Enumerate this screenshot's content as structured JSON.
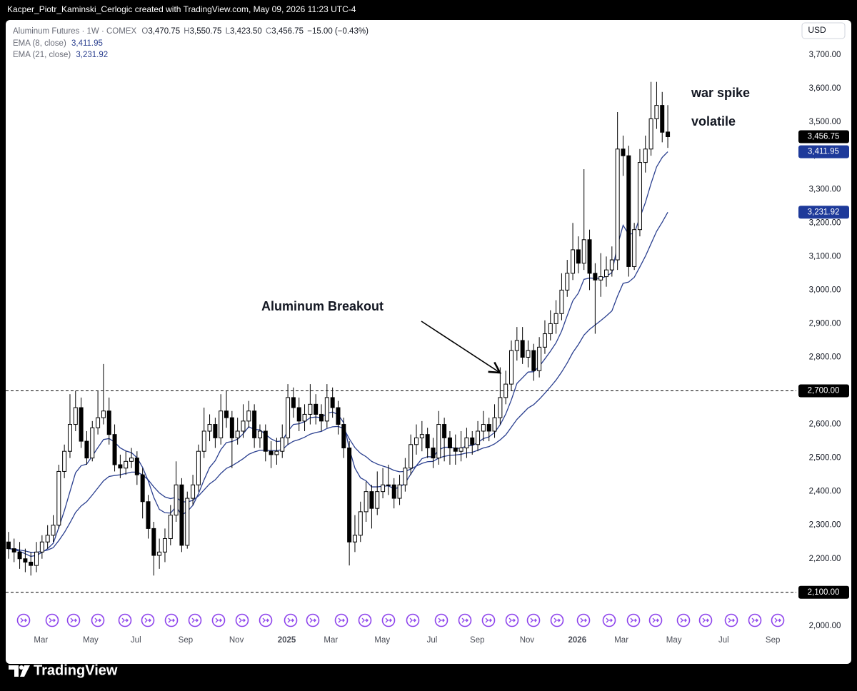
{
  "header": {
    "title": "Kacper_Piotr_Kaminski_Cerlogic created with TradingView.com, May 09, 2026 11:23 UTC-4"
  },
  "brand": "TradingView",
  "chart_data": {
    "type": "candlestick",
    "currency": "USD",
    "legend": {
      "symbol": "Aluminum Futures · 1W · COMEX",
      "open_label": "O",
      "open": "3,470.75",
      "high_label": "H",
      "high": "3,550.75",
      "low_label": "L",
      "low": "3,423.50",
      "close_label": "C",
      "close": "3,456.75",
      "change": "−15.00 (−0.43%)"
    },
    "annotations": [
      "Aluminum Breakout",
      "war spike",
      "volatile"
    ],
    "xlim": [
      -0.5,
      141
    ],
    "xticks": [
      {
        "value": 5.8,
        "label": "Mar"
      },
      {
        "value": 14.7,
        "label": "May"
      },
      {
        "value": 22.8,
        "label": "Jul"
      },
      {
        "value": 31.7,
        "label": "Sep"
      },
      {
        "value": 40.8,
        "label": "Nov"
      },
      {
        "value": 49.8,
        "label": "2025"
      },
      {
        "value": 57.7,
        "label": "Mar"
      },
      {
        "value": 66.9,
        "label": "May"
      },
      {
        "value": 75.8,
        "label": "Jul"
      },
      {
        "value": 83.9,
        "label": "Sep"
      },
      {
        "value": 92.8,
        "label": "Nov"
      },
      {
        "value": 101.8,
        "label": "2026"
      },
      {
        "value": 109.7,
        "label": "Mar"
      },
      {
        "value": 119.1,
        "label": "May"
      },
      {
        "value": 128,
        "label": "Jul"
      },
      {
        "value": 136.8,
        "label": "Sep"
      }
    ],
    "ylim": [
      1887,
      3800
    ],
    "yticks": [
      {
        "value": 2000,
        "label": "2,000.00"
      },
      {
        "value": 2200,
        "label": "2,200.00"
      },
      {
        "value": 2300,
        "label": "2,300.00"
      },
      {
        "value": 2400,
        "label": "2,400.00"
      },
      {
        "value": 2500,
        "label": "2,500.00"
      },
      {
        "value": 2600,
        "label": "2,600.00"
      },
      {
        "value": 2800,
        "label": "2,800.00"
      },
      {
        "value": 2900,
        "label": "2,900.00"
      },
      {
        "value": 3000,
        "label": "3,000.00"
      },
      {
        "value": 3100,
        "label": "3,100.00"
      },
      {
        "value": 3200,
        "label": "3,200.00"
      },
      {
        "value": 3300,
        "label": "3,300.00"
      },
      {
        "value": 3400,
        "label": "3,400.00"
      },
      {
        "value": 3500,
        "label": "3,500.00"
      },
      {
        "value": 3600,
        "label": "3,600.00"
      },
      {
        "value": 3700,
        "label": "3,700.00"
      }
    ],
    "grid": false,
    "hlines": [
      {
        "value": 2700,
        "label": "2,700.00"
      },
      {
        "value": 2100,
        "label": "2,100.00"
      }
    ],
    "open": [
      2250,
      2230,
      2220,
      2200,
      2190,
      2180,
      2220,
      2250,
      2270,
      2300,
      2460,
      2520,
      2600,
      2650,
      2550,
      2500,
      2590,
      2620,
      2640,
      2570,
      2480,
      2470,
      2490,
      2500,
      2450,
      2370,
      2290,
      2210,
      2220,
      2260,
      2330,
      2420,
      2240,
      2380,
      2420,
      2520,
      2580,
      2600,
      2560,
      2640,
      2620,
      2560,
      2580,
      2610,
      2640,
      2560,
      2580,
      2520,
      2510,
      2520,
      2560,
      2680,
      2650,
      2610,
      2630,
      2660,
      2630,
      2610,
      2680,
      2650,
      2600,
      2530,
      2250,
      2270,
      2340,
      2400,
      2350,
      2400,
      2420,
      2420,
      2380,
      2420,
      2470,
      2540,
      2560,
      2570,
      2530,
      2500,
      2600,
      2560,
      2530,
      2520,
      2530,
      2560,
      2540,
      2580,
      2600,
      2580,
      2620,
      2680,
      2720,
      2820,
      2850,
      2800,
      2820,
      2760,
      2830,
      2870,
      2900,
      2930,
      3000,
      3050,
      3120,
      3080,
      3150,
      3050,
      3030,
      3040,
      3060,
      3090,
      3420,
      3400,
      3070,
      3180,
      3380,
      3420,
      3510,
      3550,
      3470.75
    ],
    "high": [
      2280,
      2260,
      2250,
      2230,
      2220,
      2250,
      2270,
      2300,
      2330,
      2480,
      2540,
      2690,
      2700,
      2680,
      2580,
      2610,
      2700,
      2780,
      2680,
      2600,
      2510,
      2520,
      2530,
      2520,
      2470,
      2390,
      2310,
      2260,
      2290,
      2360,
      2490,
      2440,
      2400,
      2450,
      2540,
      2650,
      2630,
      2620,
      2690,
      2700,
      2640,
      2620,
      2660,
      2670,
      2660,
      2600,
      2600,
      2550,
      2560,
      2600,
      2720,
      2710,
      2680,
      2660,
      2720,
      2690,
      2660,
      2720,
      2710,
      2670,
      2620,
      2550,
      2330,
      2370,
      2430,
      2420,
      2460,
      2470,
      2480,
      2440,
      2450,
      2500,
      2570,
      2600,
      2610,
      2590,
      2560,
      2640,
      2620,
      2580,
      2570,
      2580,
      2590,
      2580,
      2610,
      2640,
      2620,
      2660,
      2770,
      2760,
      2850,
      2890,
      2890,
      2850,
      2840,
      2860,
      2910,
      2940,
      2970,
      3050,
      3090,
      3200,
      3160,
      3360,
      3180,
      3080,
      3110,
      3100,
      3130,
      3530,
      3460,
      3430,
      3200,
      3420,
      3460,
      3620,
      3620,
      3590,
      3550.75
    ],
    "low": [
      2200,
      2190,
      2170,
      2160,
      2150,
      2160,
      2200,
      2230,
      2250,
      2290,
      2440,
      2500,
      2580,
      2530,
      2480,
      2490,
      2570,
      2600,
      2540,
      2460,
      2440,
      2450,
      2470,
      2420,
      2320,
      2260,
      2150,
      2170,
      2190,
      2240,
      2310,
      2220,
      2230,
      2360,
      2400,
      2500,
      2550,
      2530,
      2540,
      2590,
      2470,
      2540,
      2560,
      2590,
      2530,
      2530,
      2490,
      2470,
      2480,
      2500,
      2540,
      2620,
      2580,
      2580,
      2600,
      2600,
      2580,
      2590,
      2620,
      2570,
      2500,
      2180,
      2220,
      2250,
      2310,
      2290,
      2330,
      2380,
      2390,
      2350,
      2360,
      2400,
      2450,
      2510,
      2520,
      2500,
      2470,
      2480,
      2490,
      2480,
      2480,
      2490,
      2500,
      2510,
      2520,
      2550,
      2550,
      2560,
      2600,
      2660,
      2700,
      2790,
      2780,
      2770,
      2730,
      2740,
      2810,
      2850,
      2870,
      2910,
      2980,
      3030,
      3050,
      3060,
      3000,
      2870,
      2980,
      3010,
      3040,
      3060,
      3340,
      3040,
      3060,
      3160,
      3350,
      3400,
      3480,
      3440,
      3423.5
    ],
    "close": [
      2230,
      2220,
      2200,
      2190,
      2180,
      2220,
      2250,
      2270,
      2300,
      2460,
      2520,
      2600,
      2650,
      2550,
      2500,
      2590,
      2620,
      2640,
      2570,
      2480,
      2470,
      2490,
      2500,
      2450,
      2370,
      2290,
      2210,
      2220,
      2260,
      2330,
      2420,
      2240,
      2380,
      2420,
      2520,
      2580,
      2600,
      2560,
      2640,
      2620,
      2560,
      2580,
      2610,
      2640,
      2560,
      2580,
      2520,
      2510,
      2520,
      2560,
      2680,
      2650,
      2610,
      2630,
      2660,
      2630,
      2610,
      2680,
      2650,
      2600,
      2530,
      2250,
      2270,
      2340,
      2400,
      2350,
      2400,
      2420,
      2420,
      2380,
      2420,
      2470,
      2540,
      2560,
      2570,
      2530,
      2500,
      2600,
      2560,
      2530,
      2520,
      2530,
      2560,
      2540,
      2580,
      2600,
      2580,
      2620,
      2680,
      2720,
      2820,
      2850,
      2800,
      2820,
      2760,
      2830,
      2870,
      2900,
      2930,
      3000,
      3050,
      3120,
      3080,
      3150,
      3050,
      3030,
      3040,
      3060,
      3090,
      3420,
      3400,
      3070,
      3180,
      3380,
      3420,
      3510,
      3550,
      3470,
      3456.75
    ],
    "series": [
      {
        "name": "EMA (8, close)",
        "color": "#2a3f8f",
        "last_label": "3,411.95",
        "values": [
          2230,
          2228,
          2222,
          2215,
          2207,
          2210,
          2219,
          2230,
          2246,
          2293,
          2343,
          2400,
          2456,
          2477,
          2482,
          2506,
          2531,
          2555,
          2558,
          2547,
          2530,
          2521,
          2516,
          2501,
          2472,
          2432,
          2383,
          2347,
          2337,
          2336,
          2355,
          2330,
          2341,
          2359,
          2394,
          2435,
          2472,
          2492,
          2525,
          2546,
          2549,
          2556,
          2572,
          2593,
          2585,
          2584,
          2570,
          2557,
          2549,
          2551,
          2580,
          2600,
          2602,
          2608,
          2620,
          2622,
          2620,
          2633,
          2637,
          2629,
          2605,
          2527,
          2470,
          2441,
          2432,
          2414,
          2414,
          2416,
          2417,
          2409,
          2412,
          2426,
          2452,
          2477,
          2498,
          2504,
          2503,
          2524,
          2532,
          2532,
          2529,
          2529,
          2536,
          2537,
          2546,
          2558,
          2563,
          2576,
          2599,
          2631,
          2673,
          2722,
          2739,
          2756,
          2757,
          2773,
          2795,
          2818,
          2843,
          2878,
          2924,
          2968,
          2991,
          3032,
          3036,
          3035,
          3035,
          3041,
          3052,
          3133,
          3193,
          3166,
          3169,
          3216,
          3261,
          3317,
          3367,
          3395,
          3411.95
        ]
      },
      {
        "name": "EMA (21, close)",
        "color": "#2a3f8f",
        "last_label": "3,231.92",
        "values": [
          2230,
          2229,
          2226,
          2223,
          2219,
          2219,
          2222,
          2226,
          2233,
          2254,
          2278,
          2307,
          2338,
          2357,
          2370,
          2390,
          2411,
          2432,
          2445,
          2448,
          2450,
          2454,
          2458,
          2458,
          2450,
          2435,
          2414,
          2396,
          2384,
          2379,
          2383,
          2370,
          2369,
          2374,
          2387,
          2405,
          2423,
          2435,
          2454,
          2469,
          2477,
          2487,
          2498,
          2511,
          2518,
          2523,
          2523,
          2522,
          2522,
          2525,
          2540,
          2550,
          2555,
          2562,
          2571,
          2576,
          2579,
          2588,
          2593,
          2594,
          2588,
          2557,
          2531,
          2514,
          2504,
          2490,
          2482,
          2476,
          2471,
          2463,
          2459,
          2460,
          2467,
          2476,
          2484,
          2489,
          2490,
          2500,
          2505,
          2508,
          2509,
          2511,
          2515,
          2517,
          2523,
          2530,
          2534,
          2542,
          2554,
          2569,
          2592,
          2615,
          2632,
          2649,
          2659,
          2675,
          2693,
          2712,
          2732,
          2756,
          2783,
          2814,
          2838,
          2866,
          2883,
          2896,
          2909,
          2923,
          2938,
          2982,
          3020,
          3024,
          3038,
          3069,
          3101,
          3138,
          3175,
          3202,
          3231.92
        ]
      }
    ]
  }
}
